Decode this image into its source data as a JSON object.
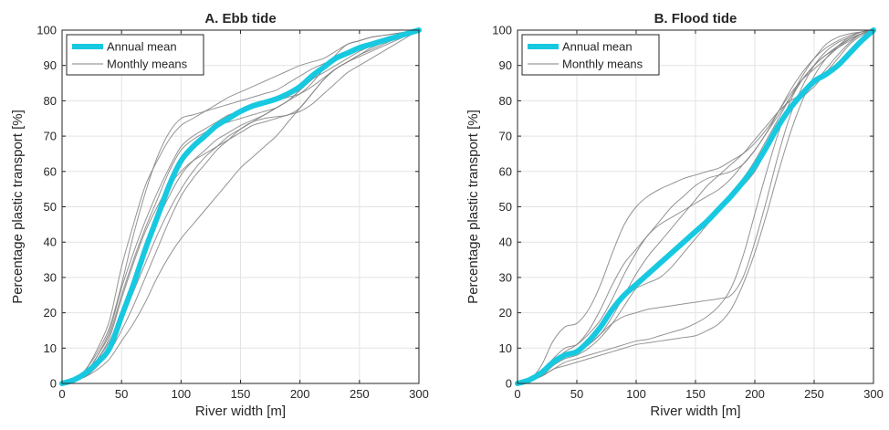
{
  "chart_data": [
    {
      "type": "line",
      "title": "A. Ebb tide",
      "xlabel": "River width [m]",
      "ylabel": "Percentage plastic transport [%]",
      "xlim": [
        0,
        300
      ],
      "ylim": [
        0,
        100
      ],
      "xticks": [
        0,
        50,
        100,
        150,
        200,
        250,
        300
      ],
      "yticks": [
        0,
        10,
        20,
        30,
        40,
        50,
        60,
        70,
        80,
        90,
        100
      ],
      "grid": true,
      "legend": {
        "placement": "top-left",
        "entries": [
          "Annual mean",
          "Monthly means"
        ]
      },
      "x": [
        0,
        10,
        20,
        30,
        40,
        50,
        60,
        70,
        80,
        90,
        100,
        110,
        120,
        130,
        140,
        150,
        160,
        170,
        180,
        190,
        200,
        210,
        220,
        230,
        240,
        250,
        260,
        270,
        280,
        290,
        300
      ],
      "series": [
        {
          "name": "Annual mean",
          "role": "mean",
          "color": "#17c9e0",
          "values": [
            0,
            1,
            3,
            6,
            10,
            19,
            28,
            38,
            47,
            56,
            63,
            67,
            70,
            73,
            75,
            77,
            78.5,
            79.5,
            80.5,
            82,
            84,
            87,
            89.5,
            92,
            93.5,
            95,
            96,
            97,
            98,
            99,
            100
          ]
        },
        {
          "name": "Monthly means",
          "role": "monthly",
          "color": "#808080",
          "values": [
            0,
            1,
            4,
            9,
            16,
            28,
            42,
            54,
            64,
            71,
            75,
            76,
            77,
            78,
            79,
            80,
            81,
            82,
            83,
            85,
            87,
            89,
            90.5,
            92,
            93.5,
            95,
            96,
            97,
            98,
            99,
            100
          ]
        },
        {
          "role": "monthly",
          "color": "#808080",
          "values": [
            0,
            1,
            4,
            10,
            18,
            33,
            45,
            56,
            63,
            69,
            73,
            75,
            77,
            79,
            81,
            82.5,
            84,
            85.5,
            87,
            88.5,
            90,
            91,
            92,
            94,
            96,
            97,
            98,
            98.5,
            99,
            99.5,
            100
          ]
        },
        {
          "role": "monthly",
          "color": "#808080",
          "values": [
            0,
            1,
            3,
            8,
            14,
            25,
            35,
            44,
            52,
            60,
            66,
            69,
            71,
            73,
            74,
            75,
            76,
            77,
            78,
            80,
            82,
            85,
            89,
            93,
            96,
            97,
            98,
            98.5,
            99,
            99.5,
            100
          ]
        },
        {
          "role": "monthly",
          "color": "#808080",
          "values": [
            0,
            1,
            3,
            7,
            12,
            20,
            28,
            37,
            46,
            53,
            59,
            63,
            66,
            69,
            71,
            73,
            74.5,
            76,
            78,
            80,
            83,
            86,
            88,
            90,
            92,
            94,
            95.5,
            97,
            98,
            99,
            100
          ]
        },
        {
          "role": "monthly",
          "color": "#808080",
          "values": [
            0,
            1,
            2,
            5,
            9,
            15,
            22,
            30,
            38,
            46,
            53,
            58,
            62,
            66,
            69,
            72,
            74,
            75,
            75.5,
            76,
            78,
            82,
            86,
            89,
            91,
            92.5,
            94,
            95.5,
            97,
            98.5,
            100
          ]
        },
        {
          "role": "monthly",
          "color": "#808080",
          "values": [
            0,
            1,
            2,
            4,
            7,
            12,
            17,
            23,
            30,
            36,
            41,
            45,
            49,
            53,
            57,
            61,
            64,
            67,
            70,
            74,
            78,
            82,
            86,
            89,
            91,
            93,
            94.5,
            96,
            97.5,
            99,
            100
          ]
        },
        {
          "role": "monthly",
          "color": "#808080",
          "values": [
            0,
            1,
            3,
            7,
            13,
            24,
            34,
            43,
            50,
            56,
            60,
            63,
            65,
            67,
            69,
            71,
            73,
            74,
            75,
            76,
            77,
            79,
            82,
            85,
            88,
            90,
            92,
            94,
            96,
            98,
            100
          ]
        },
        {
          "role": "monthly",
          "color": "#808080",
          "values": [
            0,
            1,
            3,
            8,
            15,
            27,
            37,
            46,
            54,
            61,
            67,
            70,
            72,
            74,
            76,
            77,
            78,
            79,
            80,
            81,
            82,
            84,
            86.5,
            89,
            91,
            93,
            95,
            96.5,
            98,
            99,
            100
          ]
        },
        {
          "role": "monthly",
          "color": "#808080",
          "values": [
            0,
            1,
            2,
            6,
            11,
            18,
            26,
            34,
            42,
            49,
            55,
            60,
            64,
            67,
            70,
            72,
            74,
            76,
            78,
            80,
            83,
            86,
            89,
            91.5,
            93.5,
            95,
            96.5,
            97.5,
            98.5,
            99.5,
            100
          ]
        }
      ]
    },
    {
      "type": "line",
      "title": "B. Flood tide",
      "xlabel": "River width [m]",
      "ylabel": "Percentage plastic transport [%]",
      "xlim": [
        0,
        300
      ],
      "ylim": [
        0,
        100
      ],
      "xticks": [
        0,
        50,
        100,
        150,
        200,
        250,
        300
      ],
      "yticks": [
        0,
        10,
        20,
        30,
        40,
        50,
        60,
        70,
        80,
        90,
        100
      ],
      "grid": true,
      "legend": {
        "placement": "top-left",
        "entries": [
          "Annual mean",
          "Monthly means"
        ]
      },
      "x": [
        0,
        10,
        20,
        30,
        40,
        50,
        60,
        70,
        80,
        90,
        100,
        110,
        120,
        130,
        140,
        150,
        160,
        170,
        180,
        190,
        200,
        210,
        220,
        230,
        240,
        250,
        260,
        270,
        280,
        290,
        300
      ],
      "series": [
        {
          "name": "Annual mean",
          "role": "mean",
          "color": "#17c9e0",
          "values": [
            0,
            1,
            3,
            6,
            8,
            9,
            12,
            16,
            21,
            25,
            28,
            31,
            34,
            37,
            40,
            43,
            46,
            49.5,
            53,
            57,
            61.5,
            67,
            73,
            78,
            82,
            85.5,
            87.5,
            90,
            93.5,
            97,
            100
          ]
        },
        {
          "name": "Monthly means",
          "role": "monthly",
          "color": "#808080",
          "values": [
            0,
            1,
            5,
            12,
            16,
            17,
            21,
            28,
            37,
            45,
            50,
            53,
            55,
            56.5,
            58,
            59,
            60,
            61,
            63,
            65,
            68,
            72,
            77,
            83,
            88,
            92,
            95,
            97,
            98.5,
            99.5,
            100
          ]
        },
        {
          "role": "monthly",
          "color": "#808080",
          "values": [
            0,
            1,
            3,
            7,
            10,
            11,
            14,
            18,
            24,
            31,
            37,
            42,
            45,
            47,
            49,
            51,
            53,
            55,
            58,
            62,
            66,
            71,
            76,
            81,
            86,
            90,
            93,
            95.5,
            97.5,
            99,
            100
          ]
        },
        {
          "role": "monthly",
          "color": "#808080",
          "values": [
            0,
            1,
            2,
            4,
            6,
            7,
            8,
            9,
            10,
            11,
            12,
            12.5,
            13.5,
            14.5,
            15.5,
            17,
            19,
            22,
            27,
            36,
            48,
            60,
            71,
            80,
            86,
            90,
            93,
            95,
            97,
            99,
            100
          ]
        },
        {
          "role": "monthly",
          "color": "#808080",
          "values": [
            0,
            1,
            3,
            6,
            8,
            9,
            11,
            14,
            19,
            25,
            31,
            36,
            40,
            44,
            48,
            52,
            56,
            59,
            62,
            65,
            69,
            73,
            77,
            80,
            82,
            85,
            89,
            93,
            96.5,
            99,
            100
          ]
        },
        {
          "role": "monthly",
          "color": "#808080",
          "values": [
            0,
            1,
            2,
            4,
            5,
            6,
            7,
            8,
            9,
            10,
            11,
            11.5,
            12,
            12.5,
            13,
            13.5,
            15,
            17,
            21,
            28,
            37,
            48,
            60,
            71,
            80,
            87,
            92,
            95.5,
            98,
            99.5,
            100
          ]
        },
        {
          "role": "monthly",
          "color": "#808080",
          "values": [
            0,
            1,
            3,
            6,
            8,
            9,
            12,
            16,
            21,
            25,
            27,
            28.5,
            30,
            33,
            37,
            41,
            45,
            49,
            53,
            56,
            60,
            66,
            72,
            77,
            81,
            84,
            88,
            92,
            96,
            98.5,
            100
          ]
        },
        {
          "role": "monthly",
          "color": "#808080",
          "values": [
            0,
            1,
            3,
            6,
            8,
            9,
            11,
            14,
            17,
            19,
            20,
            21,
            21.5,
            22,
            22.5,
            23,
            23.5,
            24,
            25,
            30,
            40,
            52,
            65,
            76,
            84,
            90,
            94,
            96.5,
            98,
            99.5,
            100
          ]
        },
        {
          "role": "monthly",
          "color": "#808080",
          "values": [
            0,
            1,
            3,
            6,
            9,
            11,
            15,
            21,
            28,
            34,
            38,
            42,
            46,
            50,
            53,
            56,
            58,
            59,
            60,
            62,
            66,
            71,
            77,
            82,
            86,
            89,
            92,
            95,
            97.5,
            99,
            100
          ]
        },
        {
          "role": "monthly",
          "color": "#808080",
          "values": [
            0,
            1,
            2,
            5,
            7,
            8,
            10,
            13,
            17,
            22,
            27,
            31,
            34,
            37,
            40,
            43,
            46,
            50,
            54,
            58,
            63,
            69,
            75,
            81,
            87,
            92,
            96,
            98,
            99,
            99.5,
            100
          ]
        }
      ]
    }
  ]
}
